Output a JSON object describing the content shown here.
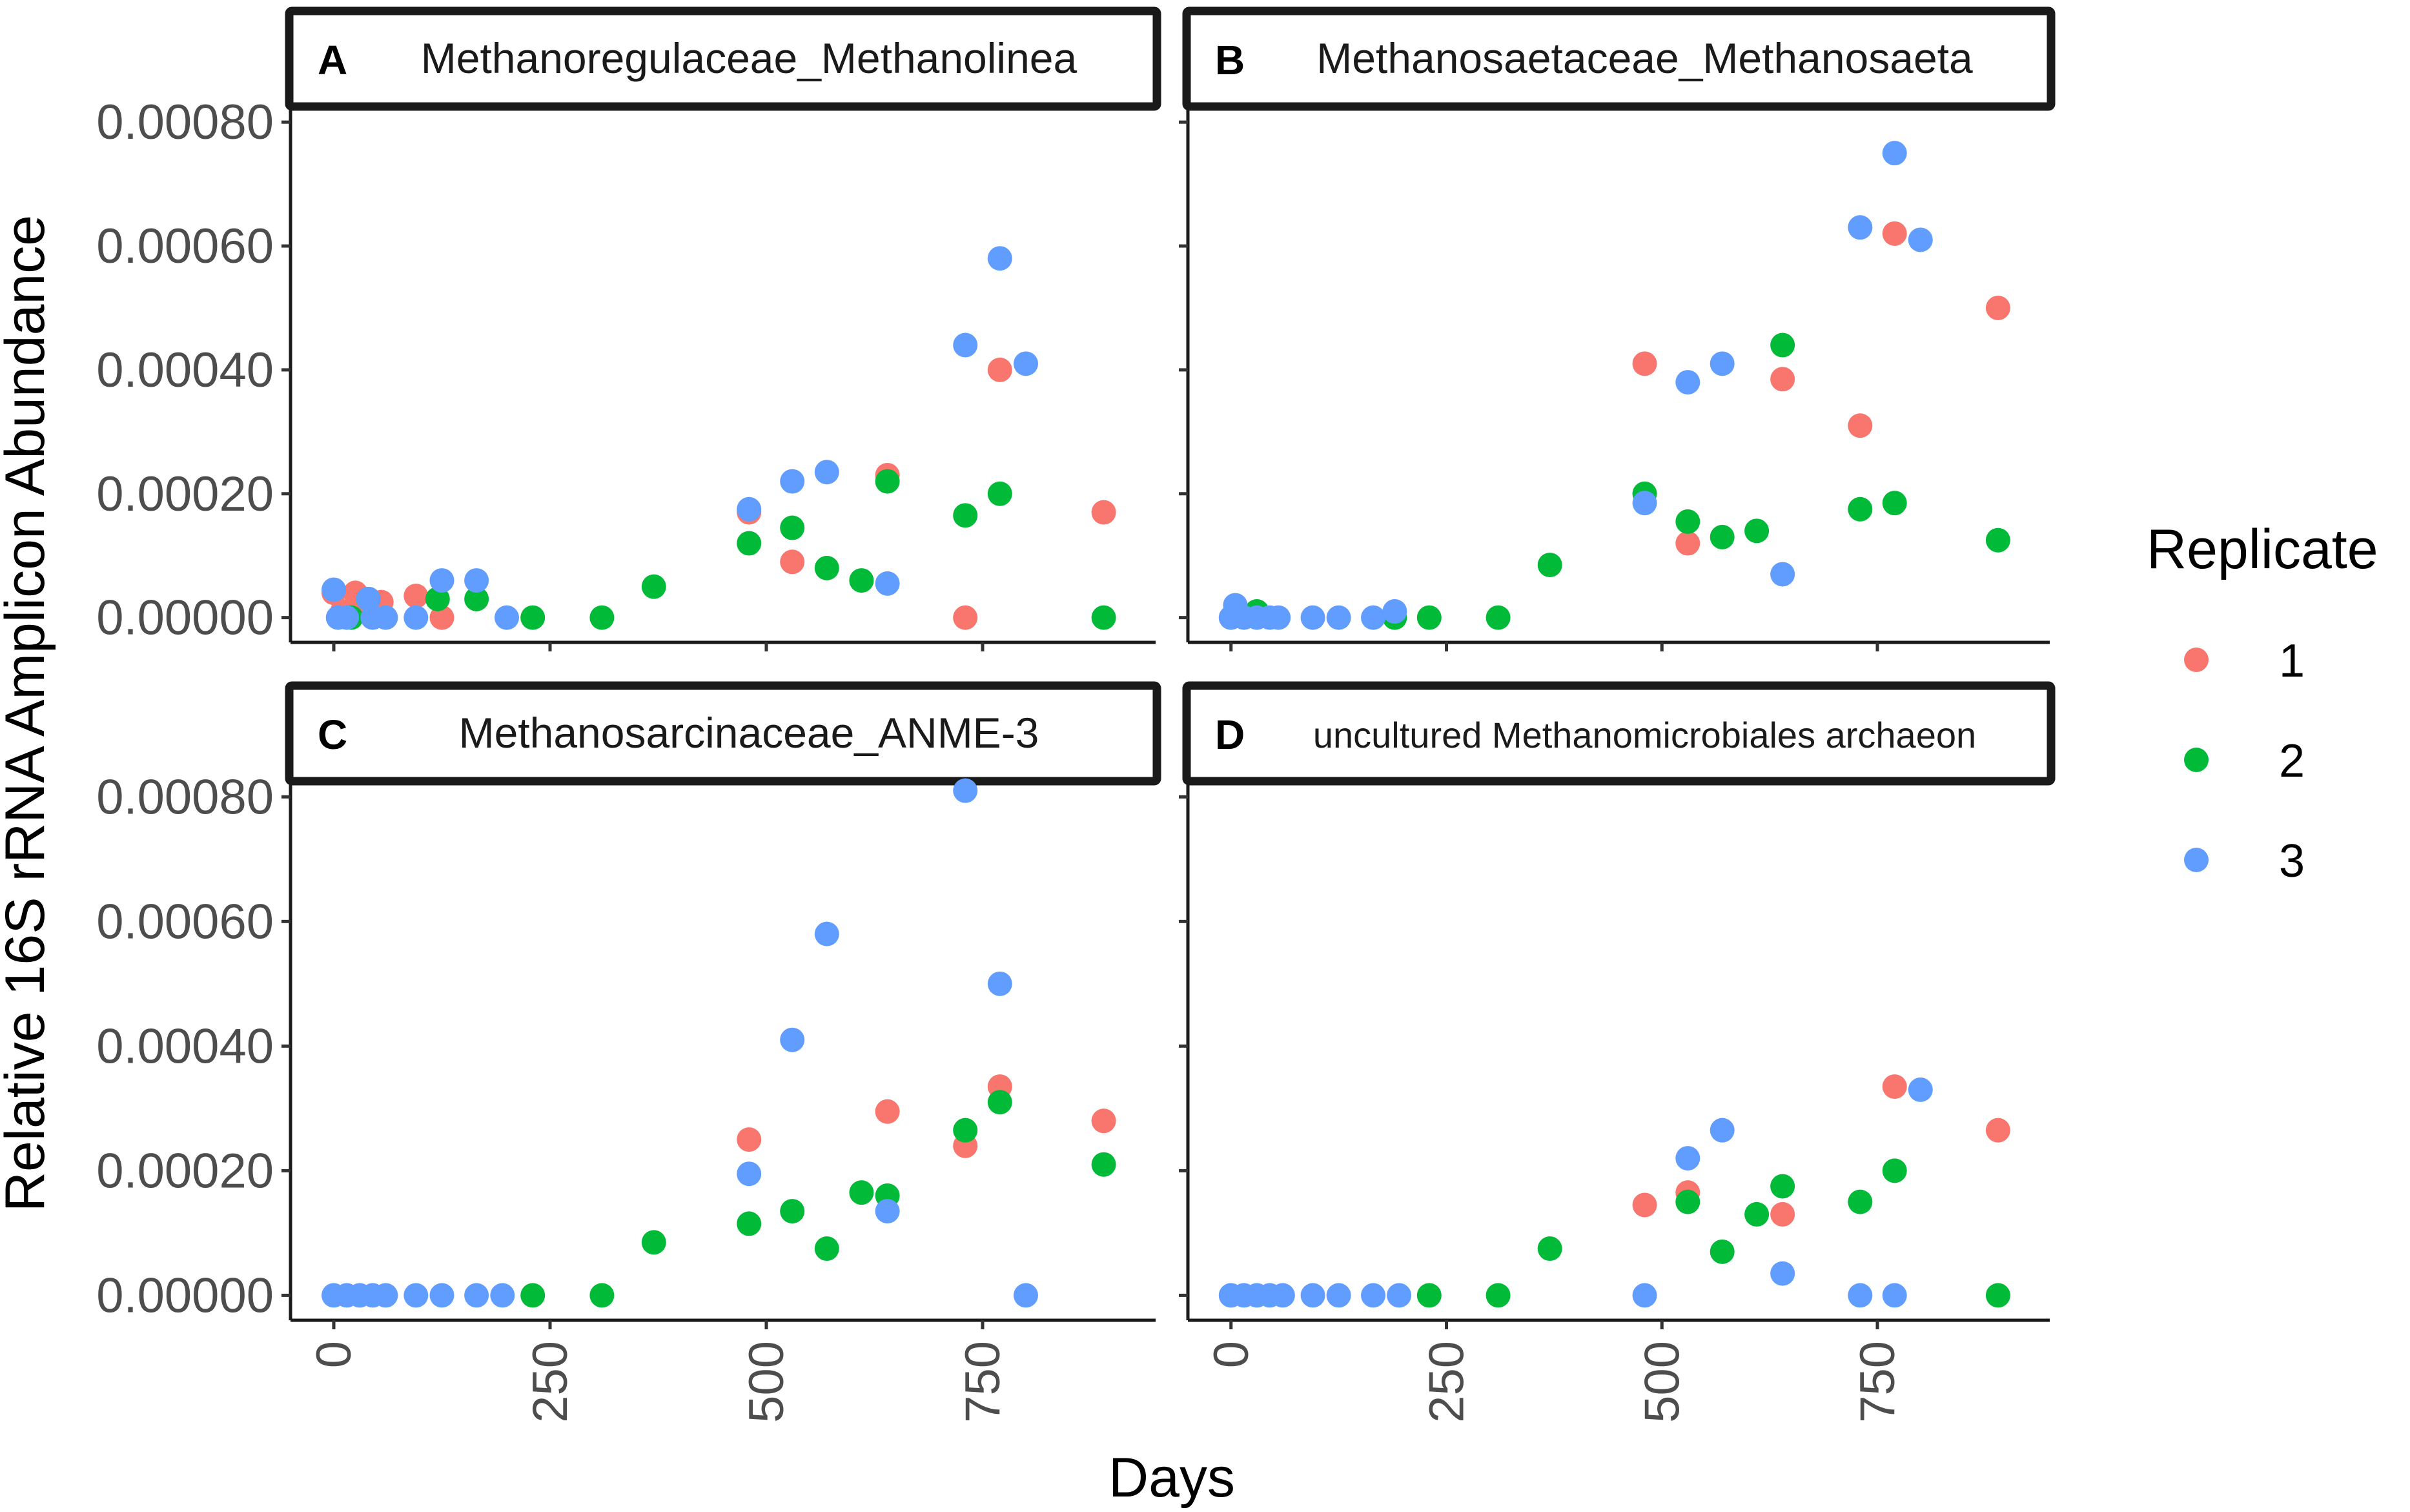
{
  "chart_data": {
    "type": "scatter",
    "xlabel": "Days",
    "ylabel": "Relative 16S rRNA Amplicon Abundance",
    "xlim": [
      -50,
      950
    ],
    "ylim": [
      -4e-05,
      0.00082
    ],
    "x_ticks": [
      "0",
      "250",
      "500",
      "750"
    ],
    "x_tick_values": [
      0,
      250,
      500,
      750
    ],
    "y_ticks": [
      "0.00000",
      "0.00020",
      "0.00040",
      "0.00060",
      "0.00080"
    ],
    "y_tick_values": [
      0,
      0.0002,
      0.0004,
      0.0006,
      0.0008
    ],
    "legend": {
      "title": "Replicate",
      "entries": [
        {
          "label": "1",
          "color": "#F8766D"
        },
        {
          "label": "2",
          "color": "#00BA38"
        },
        {
          "label": "3",
          "color": "#619CFF"
        }
      ]
    },
    "panels": [
      {
        "label": "A",
        "title": "Methanoregulaceae_Methanolinea",
        "series": [
          {
            "name": "1",
            "color": "#F8766D",
            "points": [
              [
                0,
                4e-05
              ],
              [
                10,
                1e-05
              ],
              [
                25,
                4e-05
              ],
              [
                35,
                2e-05
              ],
              [
                55,
                2.5e-05
              ],
              [
                95,
                3.5e-05
              ],
              [
                125,
                0.0
              ],
              [
                480,
                0.00017
              ],
              [
                530,
                9e-05
              ],
              [
                640,
                0.00023
              ],
              [
                730,
                0.0
              ],
              [
                770,
                0.0004
              ],
              [
                890,
                0.00017
              ]
            ]
          },
          {
            "name": "2",
            "color": "#00BA38",
            "points": [
              [
                20,
                0.0
              ],
              [
                40,
                3e-05
              ],
              [
                120,
                3e-05
              ],
              [
                165,
                3e-05
              ],
              [
                230,
                0.0
              ],
              [
                310,
                0.0
              ],
              [
                370,
                5e-05
              ],
              [
                480,
                0.00012
              ],
              [
                530,
                0.000145
              ],
              [
                570,
                8e-05
              ],
              [
                610,
                6e-05
              ],
              [
                640,
                0.00022
              ],
              [
                730,
                0.000165
              ],
              [
                770,
                0.0002
              ],
              [
                890,
                0.0
              ]
            ]
          },
          {
            "name": "3",
            "color": "#619CFF",
            "points": [
              [
                0,
                4.5e-05
              ],
              [
                5,
                0.0
              ],
              [
                15,
                0.0
              ],
              [
                40,
                3e-05
              ],
              [
                45,
                0.0
              ],
              [
                60,
                0.0
              ],
              [
                95,
                0.0
              ],
              [
                125,
                6e-05
              ],
              [
                165,
                6e-05
              ],
              [
                200,
                0.0
              ],
              [
                480,
                0.000175
              ],
              [
                530,
                0.00022
              ],
              [
                570,
                0.000235
              ],
              [
                640,
                5.5e-05
              ],
              [
                730,
                0.00044
              ],
              [
                770,
                0.00058
              ],
              [
                800,
                0.00041
              ]
            ]
          }
        ]
      },
      {
        "label": "B",
        "title": "Methanosaetaceae_Methanosaeta",
        "series": [
          {
            "name": "1",
            "color": "#F8766D",
            "points": [
              [
                480,
                0.00041
              ],
              [
                530,
                0.00012
              ],
              [
                640,
                0.000385
              ],
              [
                730,
                0.00031
              ],
              [
                770,
                0.00062
              ],
              [
                890,
                0.0005
              ]
            ]
          },
          {
            "name": "2",
            "color": "#00BA38",
            "points": [
              [
                30,
                1e-05
              ],
              [
                190,
                0.0
              ],
              [
                230,
                0.0
              ],
              [
                310,
                0.0
              ],
              [
                370,
                8.5e-05
              ],
              [
                480,
                0.0002
              ],
              [
                530,
                0.000155
              ],
              [
                570,
                0.00013
              ],
              [
                610,
                0.00014
              ],
              [
                640,
                0.00044
              ],
              [
                730,
                0.000175
              ],
              [
                770,
                0.000185
              ],
              [
                890,
                0.000125
              ]
            ]
          },
          {
            "name": "3",
            "color": "#619CFF",
            "points": [
              [
                0,
                0.0
              ],
              [
                5,
                2e-05
              ],
              [
                15,
                0.0
              ],
              [
                30,
                0.0
              ],
              [
                45,
                0.0
              ],
              [
                55,
                0.0
              ],
              [
                95,
                0.0
              ],
              [
                125,
                0.0
              ],
              [
                165,
                0.0
              ],
              [
                190,
                1e-05
              ],
              [
                480,
                0.000185
              ],
              [
                530,
                0.00038
              ],
              [
                570,
                0.00041
              ],
              [
                640,
                7e-05
              ],
              [
                730,
                0.00063
              ],
              [
                770,
                0.00075
              ],
              [
                800,
                0.00061
              ]
            ]
          }
        ]
      },
      {
        "label": "C",
        "title": "Methanosarcinaceae_ANME-3",
        "series": [
          {
            "name": "1",
            "color": "#F8766D",
            "points": [
              [
                480,
                0.00025
              ],
              [
                640,
                0.000295
              ],
              [
                730,
                0.00024
              ],
              [
                770,
                0.000335
              ],
              [
                890,
                0.00028
              ]
            ]
          },
          {
            "name": "2",
            "color": "#00BA38",
            "points": [
              [
                230,
                0.0
              ],
              [
                310,
                0.0
              ],
              [
                370,
                8.5e-05
              ],
              [
                480,
                0.000115
              ],
              [
                530,
                0.000135
              ],
              [
                570,
                7.5e-05
              ],
              [
                610,
                0.000165
              ],
              [
                640,
                0.00016
              ],
              [
                730,
                0.000265
              ],
              [
                770,
                0.00031
              ],
              [
                890,
                0.00021
              ]
            ]
          },
          {
            "name": "3",
            "color": "#619CFF",
            "points": [
              [
                0,
                0.0
              ],
              [
                15,
                0.0
              ],
              [
                30,
                0.0
              ],
              [
                45,
                0.0
              ],
              [
                60,
                0.0
              ],
              [
                95,
                0.0
              ],
              [
                125,
                0.0
              ],
              [
                165,
                0.0
              ],
              [
                195,
                0.0
              ],
              [
                480,
                0.000195
              ],
              [
                530,
                0.00041
              ],
              [
                570,
                0.00058
              ],
              [
                640,
                0.000135
              ],
              [
                730,
                0.00081
              ],
              [
                770,
                0.0005
              ],
              [
                800,
                0.0
              ]
            ]
          }
        ]
      },
      {
        "label": "D",
        "title": "uncultured Methanomicrobiales archaeon",
        "series": [
          {
            "name": "1",
            "color": "#F8766D",
            "points": [
              [
                480,
                0.000145
              ],
              [
                530,
                0.000165
              ],
              [
                640,
                0.00013
              ],
              [
                770,
                0.000335
              ],
              [
                890,
                0.000265
              ]
            ]
          },
          {
            "name": "2",
            "color": "#00BA38",
            "points": [
              [
                230,
                0.0
              ],
              [
                310,
                0.0
              ],
              [
                370,
                7.5e-05
              ],
              [
                530,
                0.00015
              ],
              [
                570,
                7e-05
              ],
              [
                610,
                0.00013
              ],
              [
                640,
                0.000175
              ],
              [
                730,
                0.00015
              ],
              [
                770,
                0.0002
              ],
              [
                890,
                0.0
              ]
            ]
          },
          {
            "name": "3",
            "color": "#619CFF",
            "points": [
              [
                0,
                0.0
              ],
              [
                15,
                0.0
              ],
              [
                30,
                0.0
              ],
              [
                45,
                0.0
              ],
              [
                60,
                0.0
              ],
              [
                95,
                0.0
              ],
              [
                125,
                0.0
              ],
              [
                165,
                0.0
              ],
              [
                195,
                0.0
              ],
              [
                480,
                0.0
              ],
              [
                530,
                0.00022
              ],
              [
                570,
                0.000265
              ],
              [
                640,
                3.5e-05
              ],
              [
                730,
                0.0
              ],
              [
                770,
                0.0
              ],
              [
                800,
                0.00033
              ]
            ]
          }
        ]
      }
    ]
  }
}
